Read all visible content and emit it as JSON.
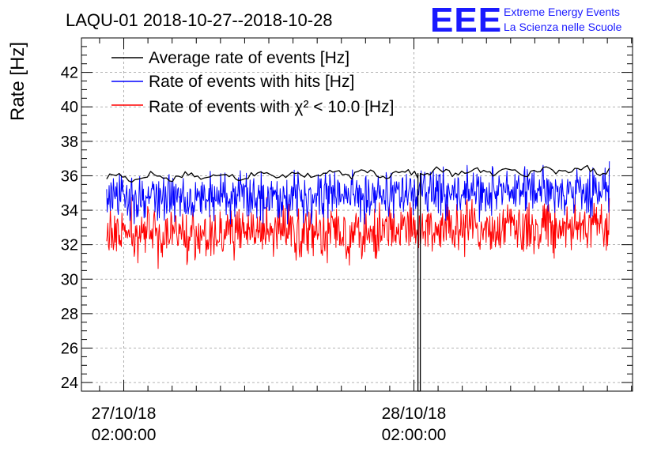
{
  "chart_data": {
    "type": "line",
    "title": "LAQU-01 2018-10-27--2018-10-28",
    "ylabel": "Rate [Hz]",
    "xlabel": "",
    "ylim": [
      23.5,
      44
    ],
    "yticks": [
      24,
      26,
      28,
      30,
      32,
      34,
      36,
      38,
      40,
      42
    ],
    "x_range": [
      "2018-10-26 22:30:00",
      "2018-10-28 20:05:00"
    ],
    "xticks": [
      {
        "x": "2018-10-27 02:00:00",
        "line1": "27/10/18",
        "line2": "02:00:00"
      },
      {
        "x": "2018-10-28 02:00:00",
        "line1": "28/10/18",
        "line2": "02:00:00"
      }
    ],
    "grid": true,
    "legend_placement": "top-left",
    "series": [
      {
        "name": "Average rate of events [Hz]",
        "color": "#000000",
        "x_start": "2018-10-27 00:35:00",
        "x_end": "2018-10-28 18:10:00",
        "summary": {
          "mean": 36.1,
          "min": 35.5,
          "max": 36.8
        },
        "dropout": {
          "x": "2018-10-28 02:20:00",
          "min": 23.5
        }
      },
      {
        "name": "Rate of events with hits [Hz]",
        "color": "#0000ff",
        "x_start": "2018-10-27 00:35:00",
        "x_end": "2018-10-28 18:10:00",
        "summary": {
          "mean": 34.9,
          "min": 33.2,
          "max": 37.7
        },
        "dropout": {
          "x": "2018-10-28 02:20:00",
          "min": 31.0
        }
      },
      {
        "name": "Rate of events with χ² < 10.0 [Hz]",
        "color": "#ff0000",
        "x_start": "2018-10-27 00:35:00",
        "x_end": "2018-10-28 18:10:00",
        "summary": {
          "mean": 32.8,
          "min": 30.3,
          "max": 35.2
        },
        "dropout": {
          "x": "2018-10-28 02:20:00",
          "min": 30.3
        }
      }
    ]
  },
  "logo": {
    "text": "EEE",
    "line1": "Extreme Energy Events",
    "line2": "La Scienza nelle Scuole",
    "color": "#1a1aff"
  }
}
